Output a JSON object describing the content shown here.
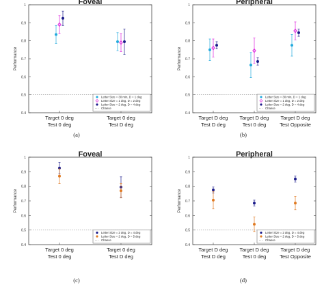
{
  "chance_label": "Chance",
  "chart_data": [
    {
      "id": "a",
      "type": "scatter",
      "title": "Foveal",
      "caption": "(a)",
      "ylabel": "Performance",
      "ylim": [
        0.4,
        1.0
      ],
      "yticks": [
        "0.4",
        "0.5",
        "0.6",
        "0.7",
        "0.8",
        "0.9",
        "1"
      ],
      "grid": false,
      "chance": 0.5,
      "legend_position": "bottom-right",
      "categories": [
        {
          "line1": "Target 0 deg",
          "line2": "Test 0 deg"
        },
        {
          "line1": "Target 0 deg",
          "line2": "Test D deg"
        }
      ],
      "series": [
        {
          "name": "Letter Size = 30 min, D = 1 deg",
          "color": "#22aadd",
          "marker": "dot",
          "values": [
            0.835,
            0.795
          ],
          "err": [
            0.05,
            0.05
          ]
        },
        {
          "name": "Letter Size = 1 deg, D = 2 deg",
          "color": "#dd22dd",
          "marker": "diamond",
          "values": [
            0.89,
            0.79
          ],
          "err": [
            0.05,
            0.05
          ]
        },
        {
          "name": "Letter Size = 2 deg, D = 4 deg",
          "color": "#1a1a8a",
          "marker": "dot",
          "values": [
            0.925,
            0.795
          ],
          "err": [
            0.04,
            0.07
          ]
        }
      ]
    },
    {
      "id": "b",
      "type": "scatter",
      "title": "Peripheral",
      "caption": "(b)",
      "ylabel": "Performance",
      "ylim": [
        0.4,
        1.0
      ],
      "yticks": [
        "0.4",
        "0.5",
        "0.6",
        "0.7",
        "0.8",
        "0.9",
        "1"
      ],
      "grid": false,
      "chance": 0.5,
      "legend_position": "bottom-right",
      "categories": [
        {
          "line1": "Target D deg",
          "line2": "Test D deg"
        },
        {
          "line1": "Target D deg",
          "line2": "Test 0 deg"
        },
        {
          "line1": "Target D deg",
          "line2": "Test Opposite"
        }
      ],
      "series": [
        {
          "name": "Letter Size = 30 min, D = 1 deg",
          "color": "#22aadd",
          "marker": "dot",
          "values": [
            0.75,
            0.665,
            0.775
          ],
          "err": [
            0.06,
            0.07,
            0.06
          ]
        },
        {
          "name": "Letter Size = 1 deg, D = 2 deg",
          "color": "#dd22dd",
          "marker": "diamond",
          "values": [
            0.76,
            0.745,
            0.855
          ],
          "err": [
            0.05,
            0.07,
            0.05
          ]
        },
        {
          "name": "Letter Size = 2 deg, D = 4 deg",
          "color": "#1a1a8a",
          "marker": "dot",
          "values": [
            0.775,
            0.685,
            0.845
          ],
          "err": [
            0.02,
            0.02,
            0.02
          ]
        }
      ]
    },
    {
      "id": "c",
      "type": "scatter",
      "title": "Foveal",
      "caption": "(c)",
      "ylabel": "Performance",
      "ylim": [
        0.4,
        1.0
      ],
      "yticks": [
        "0.4",
        "0.5",
        "0.6",
        "0.7",
        "0.8",
        "0.9",
        "1"
      ],
      "grid": false,
      "chance": 0.5,
      "legend_position": "bottom-right",
      "categories": [
        {
          "line1": "Target 0 deg",
          "line2": "Test 0 deg"
        },
        {
          "line1": "Target 0 deg",
          "line2": "Test D deg"
        }
      ],
      "series": [
        {
          "name": "Letter Size = 2 deg, D = 4 deg",
          "color": "#1a1a8a",
          "marker": "dot",
          "values": [
            0.925,
            0.795
          ],
          "err": [
            0.04,
            0.07
          ]
        },
        {
          "name": "Letter Size = 2 deg, D = 5 deg",
          "color": "#e07a22",
          "marker": "dot",
          "values": [
            0.87,
            0.77
          ],
          "err": [
            0.05,
            0.05
          ]
        }
      ]
    },
    {
      "id": "d",
      "type": "scatter",
      "title": "Peripheral",
      "caption": "(d)",
      "ylabel": "Performance",
      "ylim": [
        0.4,
        1.0
      ],
      "yticks": [
        "0.4",
        "0.5",
        "0.6",
        "0.7",
        "0.8",
        "0.9",
        "1"
      ],
      "grid": false,
      "chance": 0.5,
      "legend_position": "bottom-right",
      "categories": [
        {
          "line1": "Target D deg",
          "line2": "Test D deg"
        },
        {
          "line1": "Target D deg",
          "line2": "Test 0 deg"
        },
        {
          "line1": "Target D deg",
          "line2": "Test Opposite"
        }
      ],
      "series": [
        {
          "name": "Letter Size = 2 deg, D = 4 deg",
          "color": "#1a1a8a",
          "marker": "dot",
          "values": [
            0.775,
            0.685,
            0.85
          ],
          "err": [
            0.02,
            0.02,
            0.02
          ]
        },
        {
          "name": "Letter Size = 2 deg, D = 5 deg",
          "color": "#e07a22",
          "marker": "dot",
          "values": [
            0.705,
            0.54,
            0.685
          ],
          "err": [
            0.06,
            0.05,
            0.045
          ]
        }
      ]
    }
  ]
}
